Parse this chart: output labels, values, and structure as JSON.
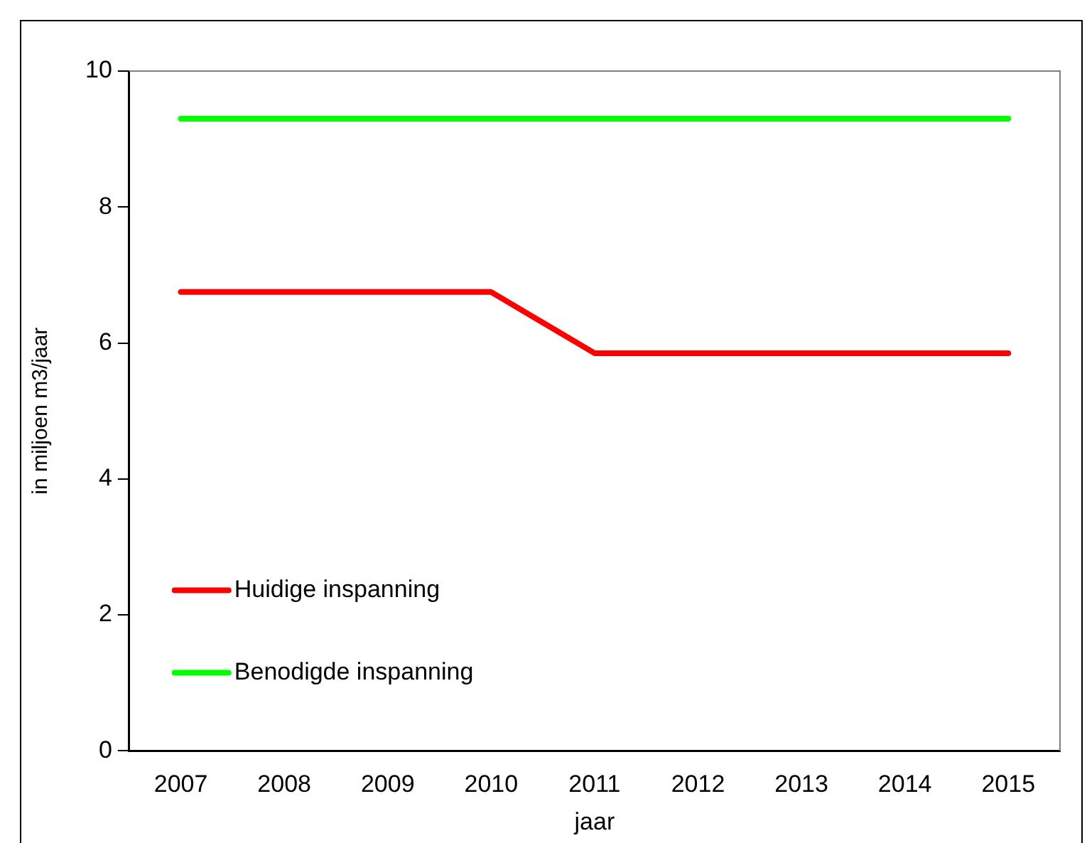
{
  "chart_data": {
    "type": "line",
    "xlabel": "jaar",
    "ylabel": "in miljoen m3/jaar",
    "categories": [
      "2007",
      "2008",
      "2009",
      "2010",
      "2011",
      "2012",
      "2013",
      "2014",
      "2015"
    ],
    "series": [
      {
        "name": "Huidige inspanning",
        "color": "#ff0000",
        "values": [
          6.75,
          6.75,
          6.75,
          6.75,
          5.85,
          5.85,
          5.85,
          5.85,
          5.85
        ]
      },
      {
        "name": "Benodigde inspanning",
        "color": "#00ff00",
        "values": [
          9.3,
          9.3,
          9.3,
          9.3,
          9.3,
          9.3,
          9.3,
          9.3,
          9.3
        ]
      }
    ],
    "ylim": [
      0,
      10
    ],
    "yticks": [
      0,
      2,
      4,
      6,
      8,
      10
    ],
    "grid": false,
    "legend": "bottom left",
    "marker": "none",
    "line_style": "solid"
  }
}
